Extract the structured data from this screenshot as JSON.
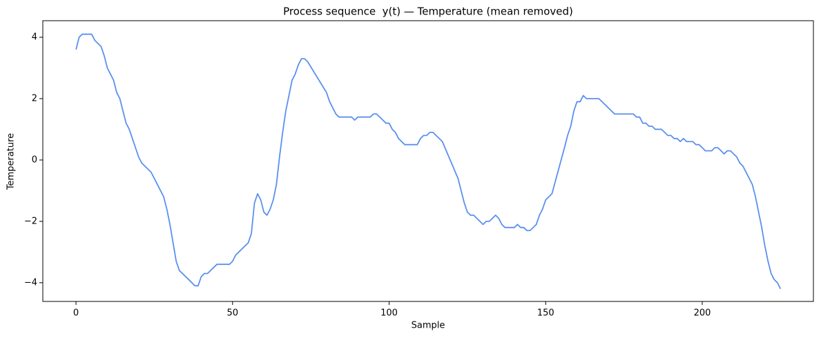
{
  "chart_data": {
    "type": "line",
    "title": "Process sequence  y(t) — Temperature (mean removed)",
    "x_label": "Sample",
    "y_label": "Temperature",
    "series": [
      {
        "name": "Temperature",
        "color": "#5b8ff0",
        "x": [
          0,
          1,
          2,
          5,
          6,
          8,
          9,
          10,
          12,
          13,
          14,
          16,
          17,
          20,
          21,
          24,
          28,
          29,
          30,
          31,
          32,
          33,
          38,
          39,
          40,
          41,
          42,
          45,
          49,
          50,
          51,
          55,
          56,
          57,
          58,
          59,
          60,
          61,
          62,
          63,
          64,
          65,
          66,
          67,
          68,
          69,
          70,
          71,
          72,
          73,
          74,
          80,
          81,
          83,
          84,
          88,
          89,
          90,
          94,
          95,
          96,
          98,
          99,
          100,
          101,
          102,
          103,
          105,
          109,
          110,
          111,
          112,
          113,
          114,
          117,
          122,
          123,
          124,
          125,
          126,
          127,
          130,
          131,
          132,
          134,
          135,
          136,
          137,
          140,
          141,
          142,
          143,
          144,
          145,
          147,
          148,
          149,
          150,
          152,
          156,
          157,
          158,
          159,
          160,
          161,
          162,
          163,
          167,
          172,
          178,
          179,
          180,
          181,
          182,
          183,
          184,
          185,
          187,
          189,
          190,
          191,
          192,
          193,
          194,
          195,
          197,
          198,
          199,
          201,
          203,
          204,
          205,
          207,
          208,
          209,
          211,
          212,
          213,
          216,
          217,
          218,
          219,
          220,
          221,
          222,
          223,
          224,
          225
        ],
        "values": [
          3.6,
          4.0,
          4.1,
          4.1,
          3.9,
          3.7,
          3.4,
          3.0,
          2.6,
          2.2,
          2.0,
          1.2,
          1.0,
          0.1,
          -0.1,
          -0.4,
          -1.2,
          -1.6,
          -2.1,
          -2.7,
          -3.3,
          -3.6,
          -4.1,
          -4.1,
          -3.8,
          -3.7,
          -3.7,
          -3.4,
          -3.4,
          -3.3,
          -3.1,
          -2.7,
          -2.4,
          -1.4,
          -1.1,
          -1.3,
          -1.7,
          -1.8,
          -1.6,
          -1.3,
          -0.8,
          0.1,
          0.9,
          1.6,
          2.1,
          2.6,
          2.8,
          3.1,
          3.3,
          3.3,
          3.2,
          2.2,
          1.9,
          1.5,
          1.4,
          1.4,
          1.3,
          1.4,
          1.4,
          1.5,
          1.5,
          1.3,
          1.2,
          1.2,
          1.0,
          0.9,
          0.7,
          0.5,
          0.5,
          0.7,
          0.8,
          0.8,
          0.9,
          0.9,
          0.6,
          -0.6,
          -1.0,
          -1.4,
          -1.7,
          -1.8,
          -1.8,
          -2.1,
          -2.0,
          -2.0,
          -1.8,
          -1.9,
          -2.1,
          -2.2,
          -2.2,
          -2.1,
          -2.2,
          -2.2,
          -2.3,
          -2.3,
          -2.1,
          -1.8,
          -1.6,
          -1.3,
          -1.1,
          0.4,
          0.8,
          1.1,
          1.6,
          1.9,
          1.9,
          2.1,
          2.0,
          2.0,
          1.5,
          1.5,
          1.4,
          1.4,
          1.2,
          1.2,
          1.1,
          1.1,
          1.0,
          1.0,
          0.8,
          0.8,
          0.7,
          0.7,
          0.6,
          0.7,
          0.6,
          0.6,
          0.5,
          0.5,
          0.3,
          0.3,
          0.4,
          0.4,
          0.2,
          0.3,
          0.3,
          0.1,
          -0.1,
          -0.2,
          -0.8,
          -1.2,
          -1.7,
          -2.2,
          -2.8,
          -3.3,
          -3.7,
          -3.9,
          -4.0,
          -4.2
        ]
      }
    ],
    "xlim": [
      -10.6,
      235.5
    ],
    "ylim": [
      -4.61,
      4.54
    ],
    "xticks": [
      0,
      50,
      100,
      150,
      200
    ],
    "yticks": [
      {
        "value": -4,
        "label": "−4"
      },
      {
        "value": -2,
        "label": "−2"
      },
      0,
      2,
      4
    ]
  }
}
